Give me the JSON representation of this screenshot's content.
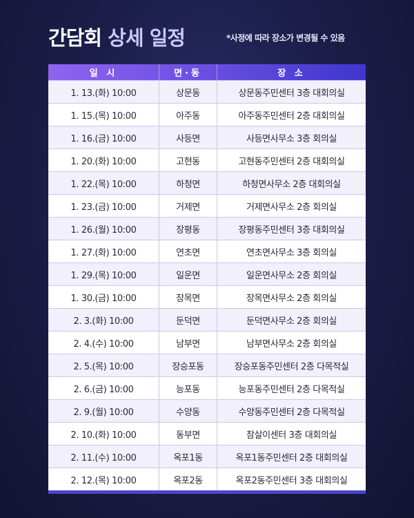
{
  "title": {
    "main": "간담회",
    "accent": "상세 일정"
  },
  "note": "*사정에 따라 장소가 변경될 수 있음",
  "headers": [
    "일 시",
    "면·동",
    "장 소"
  ],
  "rows": [
    [
      "1. 13.(화) 10:00",
      "상문동",
      "상문동주민센터 3층 대회의실"
    ],
    [
      "1. 15.(목) 10:00",
      "아주동",
      "아주동주민센터 2층 대회의실"
    ],
    [
      "1. 16.(금) 10:00",
      "사등면",
      "사등면사무소 3층 회의실"
    ],
    [
      "1. 20.(화) 10:00",
      "고현동",
      "고현동주민센터 2층 대회의실"
    ],
    [
      "1. 22.(목) 10:00",
      "하청면",
      "하청면사무소 2층 대회의실"
    ],
    [
      "1. 23.(금) 10:00",
      "거제면",
      "거제면사무소 2층 회의실"
    ],
    [
      "1. 26.(월) 10:00",
      "장평동",
      "장평동주민센터 3층 대회의실"
    ],
    [
      "1. 27.(화) 10:00",
      "연초면",
      "연초면사무소 3층 회의실"
    ],
    [
      "1. 29.(목) 10:00",
      "일운면",
      "일운면사무소 2층 회의실"
    ],
    [
      "1. 30.(금) 10:00",
      "장목면",
      "장목면사무소 2층 회의실"
    ],
    [
      "2. 3.(화) 10:00",
      "둔덕면",
      "둔덕면사무소 2층 회의실"
    ],
    [
      "2. 4.(수) 10:00",
      "남부면",
      "남부면사무소 2층 회의실"
    ],
    [
      "2. 5.(목) 10:00",
      "장승포동",
      "장승포동주민센터 2층 다목적실"
    ],
    [
      "2. 6.(금) 10:00",
      "능포동",
      "능포동주민센터 2층 다목적실"
    ],
    [
      "2. 9.(월) 10:00",
      "수양동",
      "수양동주민센터 2층 다목적실"
    ],
    [
      "2. 10.(화) 10:00",
      "동부면",
      "참살이센터 3층 대회의실"
    ],
    [
      "2. 11.(수) 10:00",
      "옥포1동",
      "옥포1동주민센터 2층 대회의실"
    ],
    [
      "2. 12.(목) 10:00",
      "옥포2동",
      "옥포2동주민센터 3층 대회의실"
    ]
  ],
  "colors": {
    "header_start": "#8f63f0",
    "header_end": "#3f36cf",
    "row_alt": "#f1f0fb",
    "accent_title": "#c9c8f6"
  }
}
